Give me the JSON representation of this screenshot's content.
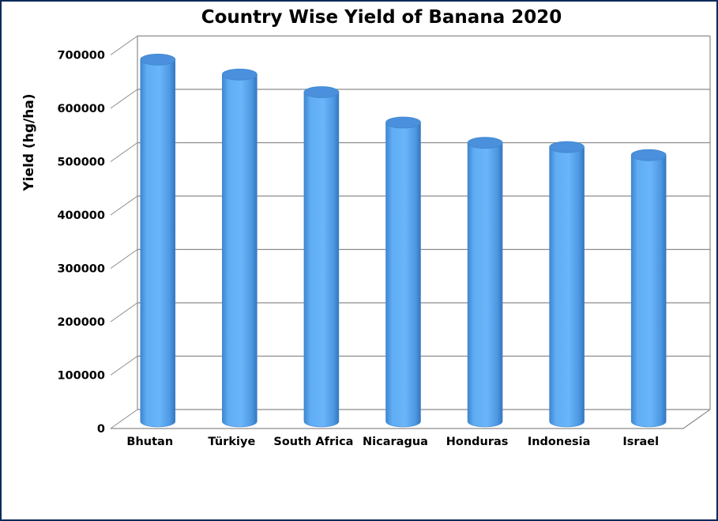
{
  "chart_data": {
    "type": "bar",
    "title": "Country Wise Yield of Banana 2020",
    "xlabel": "",
    "ylabel": "Yield (hg/ha)",
    "ylim": [
      0,
      700000
    ],
    "yticks": [
      0,
      100000,
      200000,
      300000,
      400000,
      500000,
      600000,
      700000
    ],
    "grid": true,
    "bar_style": "3d-cylinder",
    "colors": {
      "bar": "#5aa8f0",
      "bar_dark": "#3f86cf",
      "bar_top": "#4a90dc",
      "grid": "#8c8c8c",
      "frame": "#0d2a5c"
    },
    "categories": [
      "Bhutan",
      "Türkiye",
      "South Africa",
      "Nicaragua",
      "Honduras",
      "Indonesia",
      "Israel"
    ],
    "values": [
      678000,
      650000,
      617000,
      560000,
      522000,
      514000,
      499000
    ]
  }
}
